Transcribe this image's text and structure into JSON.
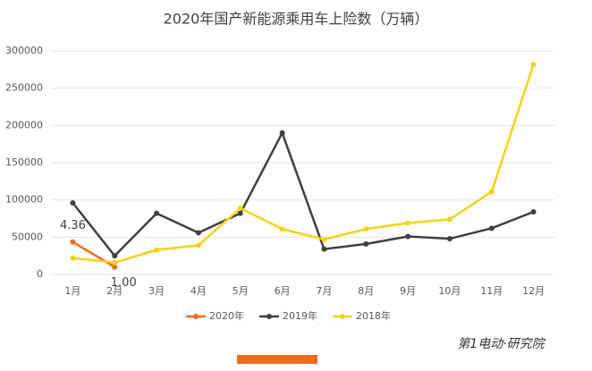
{
  "chart_data": {
    "type": "line",
    "title": "2020年国产新能源乘用车上险数（万辆）",
    "categories": [
      "1月",
      "2月",
      "3月",
      "4月",
      "5月",
      "6月",
      "7月",
      "8月",
      "9月",
      "10月",
      "11月",
      "12月"
    ],
    "series": [
      {
        "name": "2020年",
        "color": "#f26b1d",
        "values": [
          43600,
          10000,
          null,
          null,
          null,
          null,
          null,
          null,
          null,
          null,
          null,
          null
        ],
        "value_labels": [
          "4.36",
          "1.00",
          null,
          null,
          null,
          null,
          null,
          null,
          null,
          null,
          null,
          null
        ]
      },
      {
        "name": "2019年",
        "color": "#404040",
        "values": [
          96000,
          25000,
          82000,
          56000,
          82000,
          190000,
          34000,
          41000,
          51000,
          48000,
          62000,
          84000
        ]
      },
      {
        "name": "2018年",
        "color": "#f5d216",
        "values": [
          22000,
          16000,
          33000,
          39000,
          89000,
          61000,
          47000,
          61000,
          69000,
          74000,
          111000,
          282000
        ]
      }
    ],
    "ylim": [
      0,
      300000
    ],
    "yticks": [
      0,
      50000,
      100000,
      150000,
      200000,
      250000,
      300000
    ],
    "grid": true,
    "legend": "bottom",
    "brand": "第1电动·研究院"
  }
}
